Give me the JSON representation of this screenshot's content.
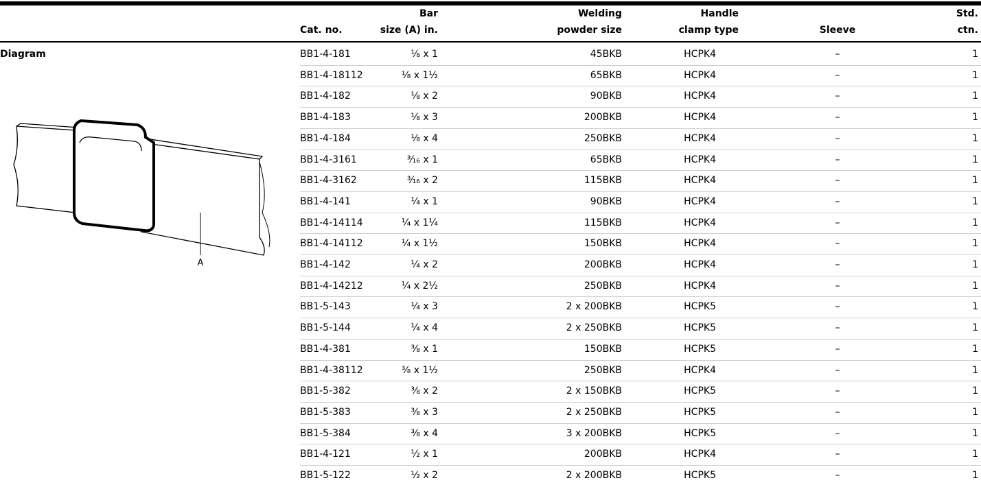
{
  "table": {
    "headers": [
      [
        "Cat. no."
      ],
      [
        "Bar",
        "size (A) in."
      ],
      [
        "Welding",
        "powder size"
      ],
      [
        "Handle",
        "clamp type"
      ],
      [
        "Sleeve"
      ],
      [
        "Std.",
        "ctn."
      ]
    ],
    "diagram_label": "Diagram",
    "rows": [
      [
        "BB1-4-181",
        "⅛ x 1",
        "45BKB",
        "HCPK4",
        "–",
        1
      ],
      [
        "BB1-4-18112",
        "⅛ x 1½",
        "65BKB",
        "HCPK4",
        "–",
        1
      ],
      [
        "BB1-4-182",
        "⅛ x 2",
        "90BKB",
        "HCPK4",
        "–",
        1
      ],
      [
        "BB1-4-183",
        "⅛ x 3",
        "200BKB",
        "HCPK4",
        "–",
        1
      ],
      [
        "BB1-4-184",
        "⅛ x 4",
        "250BKB",
        "HCPK4",
        "–",
        1
      ],
      [
        "BB1-4-3161",
        "³⁄₁₆ x 1",
        "65BKB",
        "HCPK4",
        "–",
        1
      ],
      [
        "BB1-4-3162",
        "³⁄₁₆ x 2",
        "115BKB",
        "HCPK4",
        "–",
        1
      ],
      [
        "BB1-4-141",
        "¼ x 1",
        "90BKB",
        "HCPK4",
        "–",
        1
      ],
      [
        "BB1-4-14114",
        "¼ x 1¼",
        "115BKB",
        "HCPK4",
        "–",
        1
      ],
      [
        "BB1-4-14112",
        "¼ x 1½",
        "150BKB",
        "HCPK4",
        "–",
        1
      ],
      [
        "BB1-4-142",
        "¼ x 2",
        "200BKB",
        "HCPK4",
        "–",
        1
      ],
      [
        "BB1-4-14212",
        "¼ x 2½",
        "250BKB",
        "HCPK4",
        "–",
        1
      ],
      [
        "BB1-5-143",
        "¼ x 3",
        "2 x 200BKB",
        "HCPK5",
        "–",
        1
      ],
      [
        "BB1-5-144",
        "¼ x 4",
        "2 x 250BKB",
        "HCPK5",
        "–",
        1
      ],
      [
        "BB1-4-381",
        "⅜ x 1",
        "150BKB",
        "HCPK5",
        "–",
        1
      ],
      [
        "BB1-4-38112",
        "⅜ x 1½",
        "250BKB",
        "HCPK4",
        "–",
        1
      ],
      [
        "BB1-5-382",
        "⅜ x 2",
        "2 x 150BKB",
        "HCPK5",
        "–",
        1
      ],
      [
        "BB1-5-383",
        "⅜ x 3",
        "2 x 250BKB",
        "HCPK5",
        "–",
        1
      ],
      [
        "BB1-5-384",
        "⅜ x 4",
        "3 x 200BKB",
        "HCPK5",
        "–",
        1
      ],
      [
        "BB1-4-121",
        "½ x 1",
        "200BKB",
        "HCPK4",
        "–",
        1
      ],
      [
        "BB1-5-122",
        "½ x 2",
        "2 x 200BKB",
        "HCPK5",
        "–",
        1
      ]
    ]
  },
  "diagram": {
    "label": "A"
  }
}
